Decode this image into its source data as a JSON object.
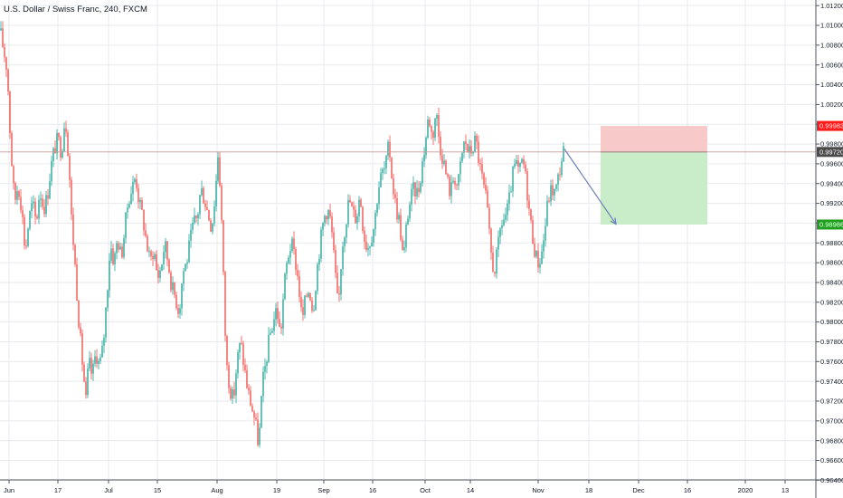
{
  "header": {
    "symbol_title": "U.S. Dollar / Swiss Franc, 240, FXCM"
  },
  "colors": {
    "up": "#26a69a",
    "down": "#ef5350",
    "grid": "#e8eaed",
    "stop_zone": "#f8c9c9",
    "target_zone": "#c9ecc9",
    "current_line": "#c89a9a",
    "arrow": "#6b7fb3",
    "stop_tag": "#ff1a1a",
    "target_tag": "#1f9e1f",
    "current_tag": "#4a4a4a"
  },
  "chart_data": {
    "type": "candlestick",
    "ylim": [
      0.9644,
      1.0122
    ],
    "y_ticks": [
      "1.01200",
      "1.01000",
      "1.00800",
      "1.00600",
      "1.00400",
      "1.00200",
      "1.00000",
      "0.99800",
      "0.99600",
      "0.99400",
      "0.99200",
      "0.99000",
      "0.98800",
      "0.98600",
      "0.98400",
      "0.98200",
      "0.98000",
      "0.97800",
      "0.97600",
      "0.97400",
      "0.97200",
      "0.97000",
      "0.96800",
      "0.96600",
      "0.96400"
    ],
    "x_ticks": [
      "Jun",
      "17",
      "Jul",
      "15",
      "Aug",
      "19",
      "Sep",
      "16",
      "Oct",
      "14",
      "Nov",
      "18",
      "Dec",
      "16",
      "2020",
      "13"
    ],
    "price_path": [
      [
        0,
        1.0095
      ],
      [
        3,
        1.008
      ],
      [
        8,
        1.0055
      ],
      [
        12,
        0.9975
      ],
      [
        16,
        0.992
      ],
      [
        20,
        0.994
      ],
      [
        24,
        0.9915
      ],
      [
        28,
        0.987
      ],
      [
        32,
        0.9905
      ],
      [
        36,
        0.992
      ],
      [
        40,
        0.99
      ],
      [
        44,
        0.9935
      ],
      [
        48,
        0.9915
      ],
      [
        52,
        0.9925
      ],
      [
        56,
        0.9955
      ],
      [
        60,
        0.9975
      ],
      [
        64,
        0.9985
      ],
      [
        68,
        0.9972
      ],
      [
        72,
        1.001
      ],
      [
        76,
        0.9965
      ],
      [
        79,
        0.9905
      ],
      [
        82,
        0.987
      ],
      [
        85,
        0.983
      ],
      [
        88,
        0.979
      ],
      [
        91,
        0.976
      ],
      [
        95,
        0.972
      ],
      [
        98,
        0.976
      ],
      [
        102,
        0.9745
      ],
      [
        106,
        0.977
      ],
      [
        110,
        0.9755
      ],
      [
        114,
        0.9775
      ],
      [
        118,
        0.9825
      ],
      [
        122,
        0.988
      ],
      [
        126,
        0.986
      ],
      [
        130,
        0.9885
      ],
      [
        134,
        0.9865
      ],
      [
        138,
        0.9895
      ],
      [
        142,
        0.9925
      ],
      [
        146,
        0.9935
      ],
      [
        150,
        0.9948
      ],
      [
        154,
        0.992
      ],
      [
        158,
        0.9905
      ],
      [
        162,
        0.988
      ],
      [
        166,
        0.986
      ],
      [
        170,
        0.9875
      ],
      [
        174,
        0.9845
      ],
      [
        178,
        0.9855
      ],
      [
        182,
        0.988
      ],
      [
        186,
        0.986
      ],
      [
        190,
        0.9835
      ],
      [
        194,
        0.9825
      ],
      [
        198,
        0.981
      ],
      [
        202,
        0.985
      ],
      [
        206,
        0.986
      ],
      [
        210,
        0.988
      ],
      [
        214,
        0.99
      ],
      [
        218,
        0.9905
      ],
      [
        222,
        0.9935
      ],
      [
        226,
        0.9925
      ],
      [
        230,
        0.991
      ],
      [
        234,
        0.9895
      ],
      [
        238,
        0.993
      ],
      [
        241,
        0.997
      ],
      [
        244,
        0.993
      ],
      [
        247,
        0.9845
      ],
      [
        250,
        0.976
      ],
      [
        254,
        0.9735
      ],
      [
        258,
        0.972
      ],
      [
        262,
        0.976
      ],
      [
        266,
        0.978
      ],
      [
        270,
        0.9755
      ],
      [
        274,
        0.973
      ],
      [
        278,
        0.9715
      ],
      [
        282,
        0.97
      ],
      [
        286,
        0.9675
      ],
      [
        290,
        0.9735
      ],
      [
        294,
        0.976
      ],
      [
        298,
        0.9785
      ],
      [
        302,
        0.98
      ],
      [
        306,
        0.9815
      ],
      [
        310,
        0.9785
      ],
      [
        314,
        0.9835
      ],
      [
        318,
        0.9865
      ],
      [
        322,
        0.988
      ],
      [
        326,
        0.9865
      ],
      [
        330,
        0.984
      ],
      [
        334,
        0.98
      ],
      [
        338,
        0.9825
      ],
      [
        342,
        0.9835
      ],
      [
        346,
        0.981
      ],
      [
        350,
        0.985
      ],
      [
        354,
        0.988
      ],
      [
        358,
        0.9905
      ],
      [
        362,
        0.9915
      ],
      [
        366,
        0.99
      ],
      [
        370,
        0.9855
      ],
      [
        374,
        0.981
      ],
      [
        378,
        0.9875
      ],
      [
        382,
        0.99
      ],
      [
        386,
        0.9925
      ],
      [
        390,
        0.991
      ],
      [
        394,
        0.9905
      ],
      [
        398,
        0.993
      ],
      [
        402,
        0.989
      ],
      [
        406,
        0.9875
      ],
      [
        410,
        0.9885
      ],
      [
        414,
        0.99
      ],
      [
        418,
        0.9935
      ],
      [
        422,
        0.995
      ],
      [
        426,
        0.9955
      ],
      [
        430,
        0.998
      ],
      [
        434,
        0.994
      ],
      [
        438,
        0.9915
      ],
      [
        442,
        0.99
      ],
      [
        446,
        0.986
      ],
      [
        450,
        0.9905
      ],
      [
        454,
        0.9925
      ],
      [
        458,
        0.9935
      ],
      [
        462,
        0.993
      ],
      [
        466,
        0.9955
      ],
      [
        470,
        0.998
      ],
      [
        474,
        1.001
      ],
      [
        478,
        0.9985
      ],
      [
        482,
        1.0015
      ],
      [
        486,
        0.998
      ],
      [
        490,
        0.9965
      ],
      [
        494,
        0.9945
      ],
      [
        498,
        0.993
      ],
      [
        502,
        0.995
      ],
      [
        506,
        0.9935
      ],
      [
        510,
        0.9965
      ],
      [
        514,
        0.9985
      ],
      [
        518,
        0.997
      ],
      [
        522,
        0.9975
      ],
      [
        526,
        0.9985
      ],
      [
        530,
        0.996
      ],
      [
        534,
        0.994
      ],
      [
        538,
        0.992
      ],
      [
        542,
        0.9875
      ],
      [
        546,
        0.985
      ],
      [
        550,
        0.987
      ],
      [
        554,
        0.99
      ],
      [
        558,
        0.9905
      ],
      [
        562,
        0.9915
      ],
      [
        566,
        0.9945
      ],
      [
        570,
        0.996
      ],
      [
        574,
        0.995
      ],
      [
        578,
        0.9965
      ],
      [
        582,
        0.994
      ],
      [
        586,
        0.9905
      ],
      [
        590,
        0.988
      ],
      [
        594,
        0.986
      ],
      [
        598,
        0.9865
      ],
      [
        602,
        0.989
      ],
      [
        606,
        0.9925
      ],
      [
        610,
        0.9935
      ],
      [
        614,
        0.993
      ],
      [
        618,
        0.995
      ],
      [
        622,
        0.997
      ],
      [
        624,
        0.9976
      ]
    ],
    "position": {
      "stop": 0.99983,
      "entry": 0.9972,
      "target": 0.98986,
      "current": 0.9972
    },
    "forecast_arrow": {
      "from": [
        624,
        0.9975
      ],
      "to": [
        681,
        0.9899
      ]
    }
  },
  "price_tags": {
    "stop_label": "0.99983",
    "current_label": "0.99720",
    "target_label": "0.98986"
  }
}
